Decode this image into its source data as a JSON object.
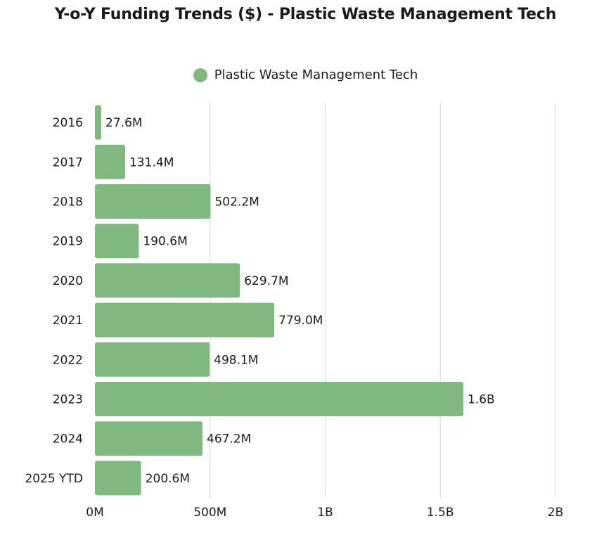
{
  "chart_data": {
    "type": "bar",
    "orientation": "horizontal",
    "title": "Y-o-Y  Funding Trends ($) - Plastic Waste Management Tech",
    "legend": {
      "placement": "top-center",
      "entries": [
        {
          "label": "Plastic Waste Management Tech",
          "color": "#80b980"
        }
      ]
    },
    "categories": [
      "2016",
      "2017",
      "2018",
      "2019",
      "2020",
      "2021",
      "2022",
      "2023",
      "2024",
      "2025 YTD"
    ],
    "series": [
      {
        "name": "Plastic Waste Management Tech",
        "color": "#80b980",
        "values": [
          27.6,
          131.4,
          502.2,
          190.6,
          629.7,
          779.0,
          498.1,
          1600,
          467.2,
          200.6
        ],
        "labels": [
          "27.6M",
          "131.4M",
          "502.2M",
          "190.6M",
          "629.7M",
          "779.0M",
          "498.1M",
          "1.6B",
          "467.2M",
          "200.6M"
        ]
      }
    ],
    "value_unit": "millions USD",
    "xlim": [
      0,
      2000
    ],
    "xticks": [
      {
        "value": 0,
        "label": "0M"
      },
      {
        "value": 500,
        "label": "500M"
      },
      {
        "value": 1000,
        "label": "1B"
      },
      {
        "value": 1500,
        "label": "1.5B"
      },
      {
        "value": 2000,
        "label": "2B"
      }
    ],
    "grid": true,
    "xlabel": "",
    "ylabel": ""
  }
}
